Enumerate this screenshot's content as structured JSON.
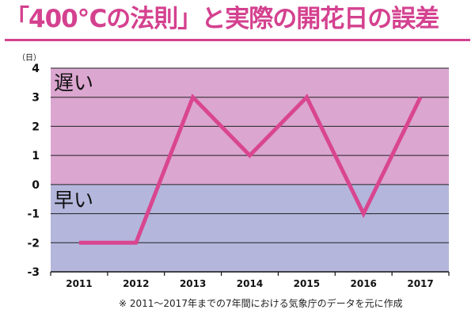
{
  "title": "「400℃の法則」と実際の開花日の誤差",
  "note": "※ 2011～2017年までの7年間における気象庁のデータを元に作成",
  "chart_data": {
    "type": "line",
    "x": [
      "2011",
      "2012",
      "2013",
      "2014",
      "2015",
      "2016",
      "2017"
    ],
    "series": [
      {
        "values": [
          -2,
          -2,
          3,
          1,
          3,
          -1,
          3
        ]
      }
    ],
    "ylim": [
      -3,
      4
    ],
    "yticks": [
      4,
      3,
      2,
      1,
      0,
      -1,
      -2,
      -3
    ],
    "ylabel": "（日）",
    "grid": true,
    "region_labels": {
      "late": "遅い",
      "early": "早い"
    },
    "colors": {
      "late_band": "#dba6d0",
      "early_band": "#b4b6dc",
      "line": "#d9468f",
      "grid": "#222222"
    }
  }
}
